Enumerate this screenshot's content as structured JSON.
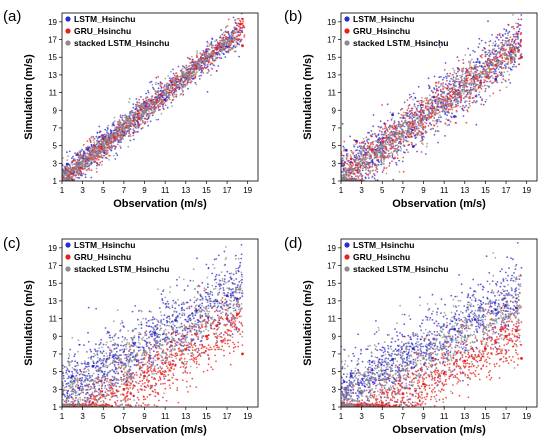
{
  "figure": {
    "panels": [
      {
        "label": "(a)",
        "xlabel": "Observation (m/s)",
        "ylabel": "Simulation (m/s)"
      },
      {
        "label": "(b)",
        "xlabel": "Observation (m/s)",
        "ylabel": "Simulation (m/s)"
      },
      {
        "label": "(c)",
        "xlabel": "Observation (m/s)",
        "ylabel": "Simulation (m/s)"
      },
      {
        "label": "(d)",
        "xlabel": "Observation (m/s)",
        "ylabel": "Simulation (m/s)"
      }
    ]
  },
  "colors": {
    "lstm": "#2a2ad4",
    "gru": "#e8221c",
    "stacked": "#8c8c8c",
    "frame": "#000000"
  },
  "chart_data": [
    {
      "type": "scatter",
      "panel": "(a)",
      "xlabel": "Observation (m/s)",
      "ylabel": "Simulation (m/s)",
      "xlim": [
        1,
        20
      ],
      "ylim": [
        1,
        20
      ],
      "xticks": [
        1,
        3,
        5,
        7,
        9,
        11,
        13,
        15,
        17,
        19
      ],
      "yticks": [
        1,
        3,
        5,
        7,
        9,
        11,
        13,
        15,
        17,
        19
      ],
      "legend_position": "top-left",
      "grid": false,
      "series": [
        {
          "name": "LSTM_Hsinchu",
          "color": "#2a2ad4",
          "spread": 1.2,
          "slope": 0.97,
          "offset": 0.25,
          "xmax": 18.5,
          "points": [
            [
              1.5,
              2.9
            ],
            [
              2.5,
              4.0
            ],
            [
              3.5,
              4.6
            ],
            [
              5,
              5.8
            ],
            [
              7,
              6.2
            ],
            [
              9,
              9.9
            ],
            [
              11,
              10.2
            ],
            [
              13,
              12.6
            ],
            [
              15,
              14.9
            ],
            [
              17,
              16.2
            ]
          ]
        },
        {
          "name": "GRU_Hsinchu",
          "color": "#e8221c",
          "spread": 0.9,
          "slope": 0.98,
          "offset": 0.1,
          "xmax": 18.8,
          "points": [
            [
              2,
              2.2
            ],
            [
              4,
              4.3
            ],
            [
              6,
              6.0
            ],
            [
              8,
              7.9
            ],
            [
              10,
              9.8
            ],
            [
              12,
              11.9
            ],
            [
              14,
              13.8
            ],
            [
              16,
              15.9
            ],
            [
              17.5,
              16.8
            ],
            [
              18.5,
              16.3
            ]
          ]
        },
        {
          "name": "stacked LSTM_Hsinchu",
          "color": "#8c8c8c",
          "spread": 1.0,
          "slope": 0.98,
          "offset": 0.15,
          "xmax": 18.0,
          "points": [
            [
              1.5,
              1.8
            ],
            [
              3,
              3.2
            ],
            [
              5,
              5.1
            ],
            [
              7,
              7.0
            ],
            [
              9,
              8.9
            ],
            [
              11,
              10.8
            ],
            [
              13,
              12.9
            ],
            [
              15,
              14.7
            ],
            [
              16.5,
              15.8
            ],
            [
              17.5,
              16.0
            ]
          ]
        }
      ]
    },
    {
      "type": "scatter",
      "panel": "(b)",
      "xlabel": "Observation (m/s)",
      "ylabel": "Simulation (m/s)",
      "xlim": [
        1,
        20
      ],
      "ylim": [
        1,
        20
      ],
      "xticks": [
        1,
        3,
        5,
        7,
        9,
        11,
        13,
        15,
        17,
        19
      ],
      "yticks": [
        1,
        3,
        5,
        7,
        9,
        11,
        13,
        15,
        17,
        19
      ],
      "legend_position": "top-left",
      "grid": false,
      "series": [
        {
          "name": "LSTM_Hsinchu",
          "color": "#2a2ad4",
          "spread": 2.2,
          "slope": 0.88,
          "offset": 0.6,
          "xmax": 18.5,
          "points": [
            [
              1.5,
              4.5
            ],
            [
              2.5,
              5.5
            ],
            [
              4,
              3.2
            ],
            [
              6,
              8.5
            ],
            [
              8,
              4.9
            ],
            [
              10,
              10.5
            ],
            [
              12,
              8.3
            ],
            [
              14,
              13.8
            ],
            [
              16,
              12.5
            ],
            [
              17.5,
              15.0
            ]
          ]
        },
        {
          "name": "GRU_Hsinchu",
          "color": "#e8221c",
          "spread": 1.8,
          "slope": 0.88,
          "offset": 0.5,
          "xmax": 18.5,
          "points": [
            [
              2,
              3.5
            ],
            [
              4,
              4.5
            ],
            [
              6,
              5.6
            ],
            [
              8,
              7.4
            ],
            [
              10,
              9.3
            ],
            [
              12,
              10.9
            ],
            [
              14,
              12.6
            ],
            [
              16,
              14.1
            ],
            [
              17.5,
              14.8
            ],
            [
              18.5,
              15.0
            ]
          ]
        },
        {
          "name": "stacked LSTM_Hsinchu",
          "color": "#8c8c8c",
          "spread": 1.6,
          "slope": 0.87,
          "offset": 0.5,
          "xmax": 18.0,
          "points": [
            [
              1.5,
              2.0
            ],
            [
              3,
              3.4
            ],
            [
              5,
              5.0
            ],
            [
              7,
              6.6
            ],
            [
              9,
              8.3
            ],
            [
              11,
              10.1
            ],
            [
              13,
              11.8
            ],
            [
              15,
              13.5
            ],
            [
              16.5,
              14.3
            ],
            [
              17.5,
              14.6
            ]
          ]
        }
      ]
    },
    {
      "type": "scatter",
      "panel": "(c)",
      "xlabel": "Observation (m/s)",
      "ylabel": "Simulation (m/s)",
      "xlim": [
        1,
        20
      ],
      "ylim": [
        1,
        20
      ],
      "xticks": [
        1,
        3,
        5,
        7,
        9,
        11,
        13,
        15,
        17,
        19
      ],
      "yticks": [
        1,
        3,
        5,
        7,
        9,
        11,
        13,
        15,
        17,
        19
      ],
      "legend_position": "top-left",
      "grid": false,
      "series": [
        {
          "name": "LSTM_Hsinchu",
          "color": "#2a2ad4",
          "spread": 2.8,
          "slope": 0.72,
          "offset": 1.3,
          "xmax": 18.5,
          "points": [
            [
              2,
              4.5
            ],
            [
              4,
              5.6
            ],
            [
              6,
              6.8
            ],
            [
              8,
              8.2
            ],
            [
              10,
              9.4
            ],
            [
              12,
              10.8
            ],
            [
              14,
              11.9
            ],
            [
              16,
              13.0
            ],
            [
              17,
              13.6
            ],
            [
              18,
              13.2
            ]
          ]
        },
        {
          "name": "GRU_Hsinchu",
          "color": "#e8221c",
          "spread": 2.6,
          "slope": 0.7,
          "offset": -2.0,
          "xmax": 18.5,
          "points": [
            [
              4,
              1.5
            ],
            [
              7,
              3.0
            ],
            [
              9,
              4.5
            ],
            [
              11,
              6.0
            ],
            [
              13,
              7.5
            ],
            [
              15,
              9.0
            ],
            [
              16,
              10.2
            ],
            [
              17,
              11.0
            ],
            [
              18,
              11.5
            ],
            [
              18.5,
              7.0
            ]
          ]
        },
        {
          "name": "stacked LSTM_Hsinchu",
          "color": "#8c8c8c",
          "spread": 3.0,
          "slope": 0.7,
          "offset": 1.0,
          "xmax": 18.5,
          "points": [
            [
              1.5,
              2.0
            ],
            [
              3,
              3.0
            ],
            [
              5,
              4.5
            ],
            [
              7,
              5.8
            ],
            [
              9,
              7.2
            ],
            [
              11,
              8.5
            ],
            [
              13,
              10.0
            ],
            [
              15,
              11.3
            ],
            [
              17,
              12.5
            ],
            [
              18,
              13.0
            ]
          ]
        }
      ]
    },
    {
      "type": "scatter",
      "panel": "(d)",
      "xlabel": "Observation (m/s)",
      "ylabel": "Simulation (m/s)",
      "xlim": [
        1,
        20
      ],
      "ylim": [
        1,
        20
      ],
      "xticks": [
        1,
        3,
        5,
        7,
        9,
        11,
        13,
        15,
        17,
        19
      ],
      "yticks": [
        1,
        3,
        5,
        7,
        9,
        11,
        13,
        15,
        17,
        19
      ],
      "legend_position": "top-left",
      "grid": false,
      "series": [
        {
          "name": "LSTM_Hsinchu",
          "color": "#2a2ad4",
          "spread": 2.8,
          "slope": 0.66,
          "offset": 1.6,
          "xmax": 18.5,
          "points": [
            [
              2,
              4.5
            ],
            [
              4,
              5.2
            ],
            [
              6,
              6.4
            ],
            [
              8,
              7.6
            ],
            [
              10,
              8.7
            ],
            [
              12,
              9.8
            ],
            [
              14,
              10.9
            ],
            [
              16,
              12.0
            ],
            [
              17,
              12.5
            ],
            [
              18,
              12.2
            ]
          ]
        },
        {
          "name": "GRU_Hsinchu",
          "color": "#e8221c",
          "spread": 2.5,
          "slope": 0.62,
          "offset": -2.0,
          "xmax": 18.5,
          "points": [
            [
              5,
              1.5
            ],
            [
              7,
              2.5
            ],
            [
              9,
              3.6
            ],
            [
              11,
              4.8
            ],
            [
              13,
              6.2
            ],
            [
              15,
              7.6
            ],
            [
              16,
              8.3
            ],
            [
              17,
              9.0
            ],
            [
              18,
              9.6
            ],
            [
              18.5,
              6.5
            ]
          ]
        },
        {
          "name": "stacked LSTM_Hsinchu",
          "color": "#8c8c8c",
          "spread": 2.8,
          "slope": 0.64,
          "offset": 1.1,
          "xmax": 18.5,
          "points": [
            [
              1.5,
              2.0
            ],
            [
              3,
              2.8
            ],
            [
              5,
              4.1
            ],
            [
              7,
              5.3
            ],
            [
              9,
              6.5
            ],
            [
              11,
              7.7
            ],
            [
              13,
              8.9
            ],
            [
              15,
              10.0
            ],
            [
              17,
              11.2
            ],
            [
              18,
              11.8
            ]
          ]
        }
      ]
    }
  ]
}
